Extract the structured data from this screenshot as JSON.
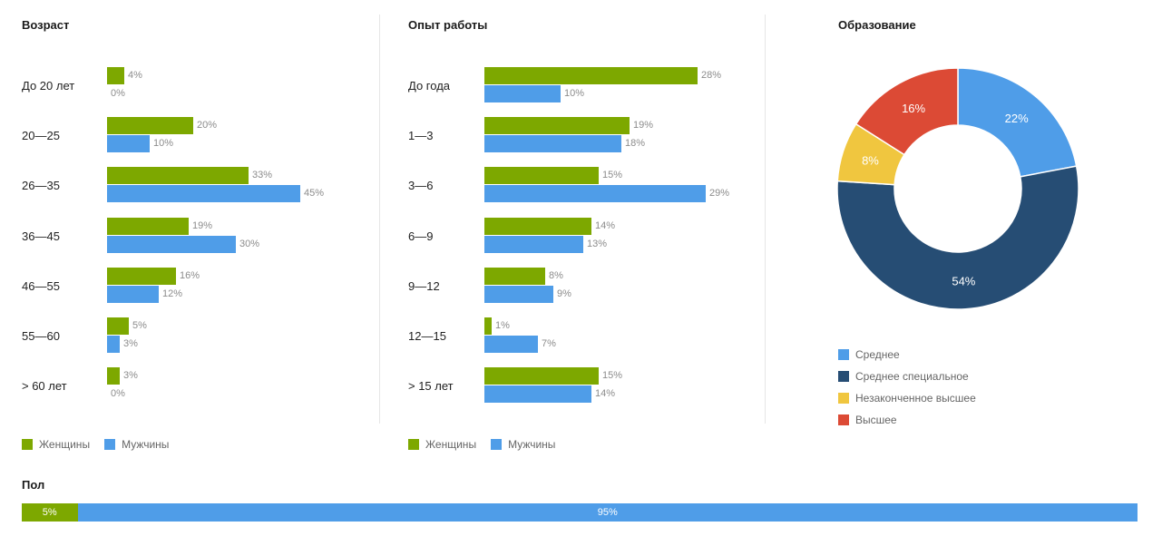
{
  "colors": {
    "women": "#7da800",
    "men": "#4f9de8",
    "divider": "#e6e6e6",
    "value_text": "#8c8c8c"
  },
  "legend": {
    "women": "Женщины",
    "men": "Мужчины"
  },
  "chart_data": [
    {
      "type": "bar",
      "orientation": "horizontal",
      "title": "Возраст",
      "categories": [
        "До 20 лет",
        "20—25",
        "26—35",
        "36—45",
        "46—55",
        "55—60",
        "> 60 лет"
      ],
      "series": [
        {
          "name": "Женщины",
          "color": "#7da800",
          "values": [
            4,
            20,
            33,
            19,
            16,
            5,
            3
          ],
          "labels": [
            "4%",
            "20%",
            "33%",
            "19%",
            "16%",
            "5%",
            "3%"
          ]
        },
        {
          "name": "Мужчины",
          "color": "#4f9de8",
          "values": [
            0,
            10,
            45,
            30,
            12,
            3,
            0
          ],
          "labels": [
            "0%",
            "10%",
            "45%",
            "30%",
            "12%",
            "3%",
            "0%"
          ]
        }
      ],
      "xlim": [
        0,
        45
      ],
      "legend_position": "bottom-left"
    },
    {
      "type": "bar",
      "orientation": "horizontal",
      "title": "Опыт работы",
      "categories": [
        "До года",
        "1—3",
        "3—6",
        "6—9",
        "9—12",
        "12—15",
        "> 15 лет"
      ],
      "series": [
        {
          "name": "Женщины",
          "color": "#7da800",
          "values": [
            28,
            19,
            15,
            14,
            8,
            1,
            15
          ],
          "labels": [
            "28%",
            "19%",
            "15%",
            "14%",
            "8%",
            "1%",
            "15%"
          ]
        },
        {
          "name": "Мужчины",
          "color": "#4f9de8",
          "values": [
            10,
            18,
            29,
            13,
            9,
            7,
            14
          ],
          "labels": [
            "10%",
            "18%",
            "29%",
            "13%",
            "9%",
            "7%",
            "14%"
          ]
        }
      ],
      "xlim": [
        0,
        29
      ],
      "legend_position": "bottom-left"
    },
    {
      "type": "pie",
      "variant": "donut",
      "title": "Образование",
      "slices": [
        {
          "name": "Среднее",
          "value": 22,
          "label": "22%",
          "color": "#4f9de8"
        },
        {
          "name": "Среднее специальное",
          "value": 54,
          "label": "54%",
          "color": "#264d74"
        },
        {
          "name": "Незаконченное высшее",
          "value": 8,
          "label": "8%",
          "color": "#f0c63f"
        },
        {
          "name": "Высшее",
          "value": 16,
          "label": "16%",
          "color": "#dc4a35"
        }
      ],
      "legend_position": "bottom"
    },
    {
      "type": "bar",
      "orientation": "horizontal",
      "stacked": true,
      "title": "Пол",
      "segments": [
        {
          "value": 5,
          "label": "5%",
          "color": "#7da800"
        },
        {
          "value": 95,
          "label": "95%",
          "color": "#4f9de8"
        }
      ]
    }
  ]
}
